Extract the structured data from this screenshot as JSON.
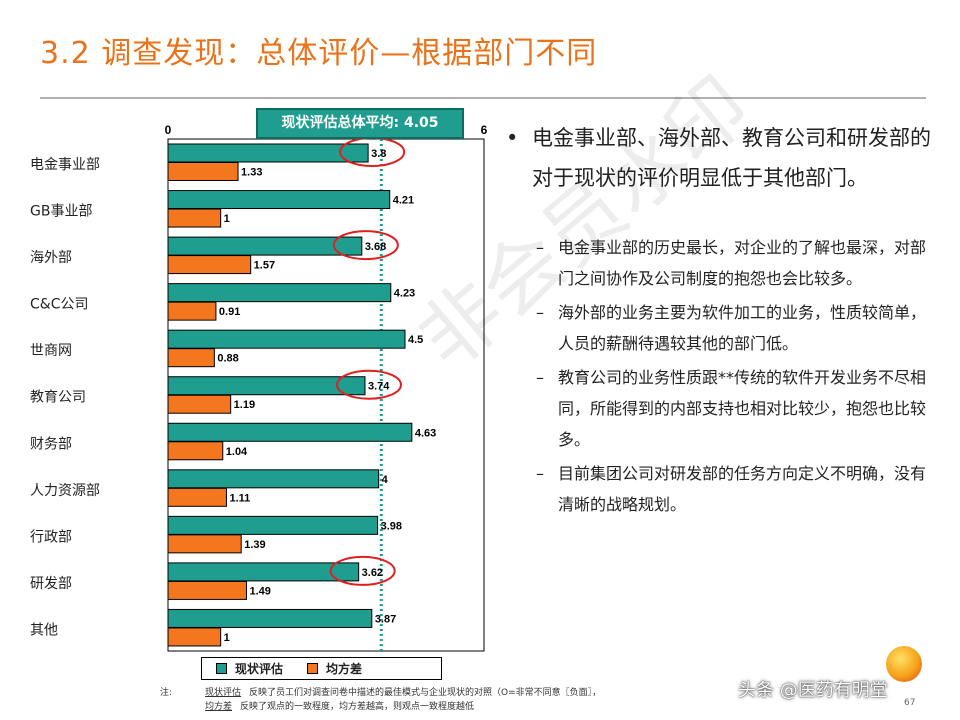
{
  "title": "3.2 调查发现：总体评价—根据部门不同",
  "chart_data": {
    "type": "bar",
    "orientation": "horizontal",
    "average_label": "现状评估总体平均: 4.05",
    "average_value": 4.05,
    "xlim": [
      0,
      6
    ],
    "x_ticks": [
      "0",
      "6"
    ],
    "categories": [
      "电金事业部",
      "GB事业部",
      "海外部",
      "C&C公司",
      "世商网",
      "教育公司",
      "财务部",
      "人力资源部",
      "行政部",
      "研发部",
      "其他"
    ],
    "series": [
      {
        "name": "现状评估",
        "color": "#1f9e8f",
        "values": [
          3.8,
          4.21,
          3.68,
          4.23,
          4.5,
          3.74,
          4.63,
          4,
          3.98,
          3.62,
          3.87
        ]
      },
      {
        "name": "均方差",
        "color": "#f4761f",
        "values": [
          1.33,
          1,
          1.57,
          0.91,
          0.88,
          1.19,
          1.04,
          1.11,
          1.39,
          1.49,
          1
        ]
      }
    ],
    "value_labels": [
      [
        "3.8",
        "4.21",
        "3.68",
        "4.23",
        "4.5",
        "3.74",
        "4.63",
        "4",
        "3.98",
        "3.62",
        "3.87"
      ],
      [
        "1.33",
        "1",
        "1.57",
        "0.91",
        "0.88",
        "1.19",
        "1.04",
        "1.11",
        "1.39",
        "1.49",
        "1"
      ]
    ],
    "highlighted_categories": [
      "电金事业部",
      "海外部",
      "教育公司",
      "研发部"
    ],
    "highlight_color": "#e02020",
    "legend_position": "bottom"
  },
  "bullets": {
    "main": "电金事业部、海外部、教育公司和研发部的对于现状的评价明显低于其他部门。",
    "dash": "–",
    "dot": "•",
    "subs": [
      "电金事业部的历史最长，对企业的了解也最深，对部门之间协作及公司制度的抱怨也会比较多。",
      "海外部的业务主要为软件加工的业务，性质较简单，人员的薪酬待遇较其他的部门低。",
      "教育公司的业务性质跟**传统的软件开发业务不尽相同，所能得到的内部支持也相对比较少，抱怨也比较多。",
      "目前集团公司对研发部的任务方向定义不明确，没有清晰的战略规划。"
    ]
  },
  "notes": {
    "tag": "注:",
    "line1_term": "现状评估",
    "line1_text": "反映了员工们对调查问卷中描述的最佳模式与企业现状的对照（O=非常不同意〖负面〗，",
    "line2_term": "均方差",
    "line2_text": "反映了观点的一致程度，均方差越高，则观点一致程度越低"
  },
  "watermark": "非会员水印",
  "brand": "头条 @医药有明堂",
  "page_number": "67"
}
